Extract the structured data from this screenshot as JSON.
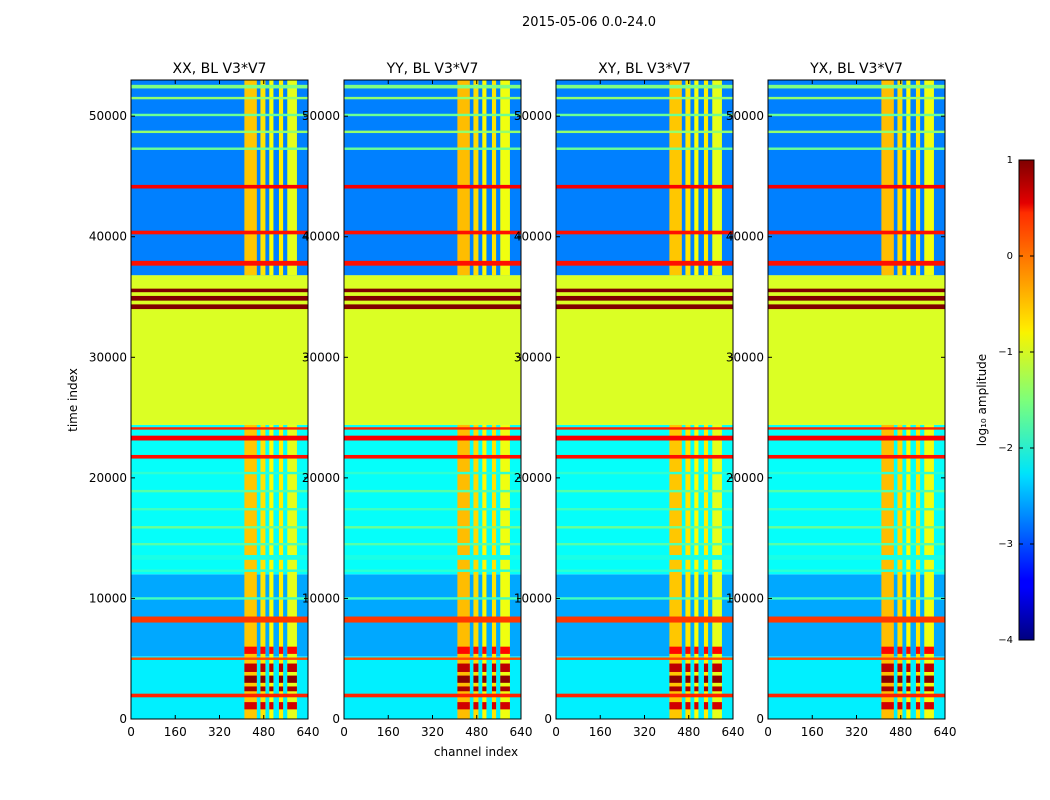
{
  "figure": {
    "title": "2015-05-06 0.0-24.0",
    "xlabel": "channel index",
    "ylabel": "time index"
  },
  "chart_data": {
    "type": "heatmap",
    "colormap": "jet",
    "xlim": [
      0,
      640
    ],
    "ylim": [
      0,
      53000
    ],
    "xticks": [
      0,
      160,
      320,
      480,
      640
    ],
    "yticks": [
      0,
      10000,
      20000,
      30000,
      40000,
      50000
    ],
    "xtick_labels": [
      "0",
      "160",
      "320",
      "480",
      "640"
    ],
    "ytick_labels": [
      "0",
      "10000",
      "20000",
      "30000",
      "40000",
      "50000"
    ],
    "panels": [
      {
        "title": "XX, BL V3*V7"
      },
      {
        "title": "YY, BL V3*V7"
      },
      {
        "title": "XY, BL V3*V7"
      },
      {
        "title": "YX, BL V3*V7"
      }
    ],
    "bright_channel_columns": [
      [
        410,
        455
      ],
      [
        468,
        486
      ],
      [
        500,
        515
      ],
      [
        535,
        550
      ],
      [
        565,
        600
      ]
    ],
    "horizontal_bands": [
      {
        "from": 1800,
        "to": 2100,
        "value": 0.2
      },
      {
        "from": 4900,
        "to": 5100,
        "value": 0.0
      },
      {
        "from": 8000,
        "to": 8500,
        "value": 0.1
      },
      {
        "from": 9900,
        "to": 10100,
        "value": -1.8
      },
      {
        "from": 12200,
        "to": 12400,
        "value": -1.9
      },
      {
        "from": 13200,
        "to": 13600,
        "value": -2.0
      },
      {
        "from": 14400,
        "to": 14600,
        "value": -1.7
      },
      {
        "from": 15800,
        "to": 16000,
        "value": -1.6
      },
      {
        "from": 17300,
        "to": 17500,
        "value": -1.8
      },
      {
        "from": 18800,
        "to": 19000,
        "value": -1.7
      },
      {
        "from": 20300,
        "to": 20500,
        "value": -1.9
      },
      {
        "from": 21600,
        "to": 21900,
        "value": 0.3
      },
      {
        "from": 23100,
        "to": 23500,
        "value": 0.4
      },
      {
        "from": 24000,
        "to": 24200,
        "value": 0.2
      },
      {
        "from": 24400,
        "to": 34000,
        "value": -1.05
      },
      {
        "from": 34000,
        "to": 34400,
        "value": 1.0
      },
      {
        "from": 34400,
        "to": 34700,
        "value": -1.05
      },
      {
        "from": 34700,
        "to": 35100,
        "value": 1.0
      },
      {
        "from": 35100,
        "to": 35400,
        "value": -1.05
      },
      {
        "from": 35400,
        "to": 35700,
        "value": 1.0
      },
      {
        "from": 35700,
        "to": 36800,
        "value": -1.05
      },
      {
        "from": 37600,
        "to": 38000,
        "value": 0.3
      },
      {
        "from": 40200,
        "to": 40500,
        "value": 0.3
      },
      {
        "from": 44000,
        "to": 44300,
        "value": 0.4
      },
      {
        "from": 47200,
        "to": 47400,
        "value": -1.6
      },
      {
        "from": 48600,
        "to": 48800,
        "value": -1.4
      },
      {
        "from": 50000,
        "to": 50200,
        "value": -1.6
      },
      {
        "from": 51400,
        "to": 51600,
        "value": -1.4
      },
      {
        "from": 52300,
        "to": 52600,
        "value": -1.5
      }
    ],
    "colorbar": {
      "label": "log₁₀ amplitude",
      "range": [
        -4,
        1
      ],
      "ticks": [
        "1",
        "0",
        "−1",
        "−2",
        "−3",
        "−4"
      ]
    }
  }
}
